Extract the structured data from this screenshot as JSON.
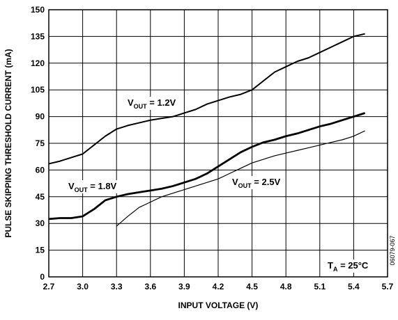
{
  "chart_data": {
    "type": "line",
    "x_label": "INPUT VOLTAGE (V)",
    "y_label": "PULSE SKIPPING THRESHOLD CURRENT (mA)",
    "xlim": [
      2.7,
      5.7
    ],
    "xticks": [
      2.7,
      {
        "value": 3,
        "label": "3.0"
      },
      3.3,
      3.6,
      3.9,
      4.2,
      4.5,
      4.8,
      5.1,
      5.4,
      5.7
    ],
    "ylim": [
      0,
      150
    ],
    "yticks": [
      0,
      15,
      30,
      45,
      60,
      75,
      90,
      105,
      120,
      135,
      150
    ],
    "grid": true,
    "series": [
      {
        "color": "#000000",
        "width": 2,
        "x": [
          2.7,
          2.8,
          2.9,
          3.0,
          3.1,
          3.2,
          3.3,
          3.4,
          3.5,
          3.6,
          3.7,
          3.8,
          3.9,
          4.0,
          4.1,
          4.2,
          4.3,
          4.4,
          4.5,
          4.6,
          4.7,
          4.8,
          4.9,
          5.0,
          5.1,
          5.2,
          5.3,
          5.4,
          5.5
        ],
        "values": [
          63.5,
          65,
          67,
          69,
          74,
          79,
          83,
          85,
          86.5,
          88,
          89,
          90,
          92,
          94,
          97,
          99,
          101,
          102.5,
          105,
          110,
          115,
          118,
          121,
          123,
          126,
          129,
          132,
          135,
          136.5
        ]
      },
      {
        "color": "#000000",
        "width": 2.8,
        "x": [
          2.7,
          2.8,
          2.9,
          3.0,
          3.1,
          3.2,
          3.3,
          3.4,
          3.5,
          3.6,
          3.7,
          3.8,
          3.9,
          4.0,
          4.1,
          4.2,
          4.3,
          4.4,
          4.5,
          4.6,
          4.7,
          4.8,
          4.9,
          5.0,
          5.1,
          5.2,
          5.3,
          5.4,
          5.5
        ],
        "values": [
          32.5,
          33,
          33,
          34,
          38,
          43,
          45,
          46.5,
          47.5,
          48.5,
          49.5,
          51,
          53,
          55,
          58,
          62,
          66,
          70,
          73,
          75.5,
          77,
          79,
          80.5,
          82.5,
          84.5,
          86,
          88,
          90,
          92
        ]
      },
      {
        "color": "#000000",
        "width": 1.2,
        "x": [
          3.3,
          3.4,
          3.5,
          3.6,
          3.7,
          3.8,
          3.9,
          4.0,
          4.1,
          4.2,
          4.3,
          4.4,
          4.5,
          4.6,
          4.7,
          4.8,
          4.9,
          5.0,
          5.1,
          5.2,
          5.3,
          5.4,
          5.5
        ],
        "values": [
          28.5,
          34,
          39,
          42,
          45,
          47,
          49,
          51,
          53,
          55,
          58,
          61,
          64,
          66,
          68,
          69.5,
          71,
          72.5,
          74,
          75.5,
          77,
          79,
          82
        ]
      }
    ],
    "annotations": [
      {
        "text": "V",
        "sub": "OUT",
        "rest": " = 1.2V"
      },
      {
        "text": "V",
        "sub": "OUT",
        "rest": " = 1.8V"
      },
      {
        "text": "V",
        "sub": "OUT",
        "rest": " = 2.5V"
      },
      {
        "text": "T",
        "sub": "A",
        "rest": " = 25°C"
      }
    ],
    "figure_id": "06079-067"
  }
}
